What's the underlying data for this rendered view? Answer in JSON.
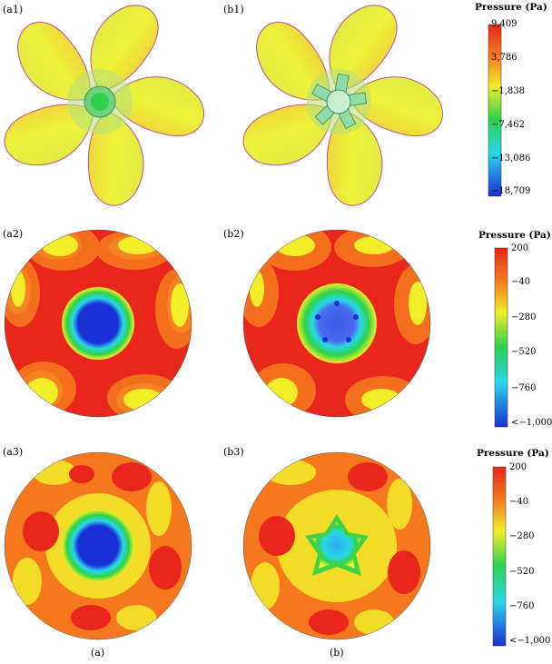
{
  "panels": {
    "a1": "(a1)",
    "b1": "(b1)",
    "a2": "(a2)",
    "b2": "(b2)",
    "a3": "(a3)",
    "b3": "(b3)"
  },
  "captions": {
    "a": "(a)",
    "b": "(b)"
  },
  "colorbars": [
    {
      "title": "Pressure (Pa)",
      "ticks": [
        "9,409",
        "3,786",
        "−1,838",
        "−7,462",
        "−13,086",
        "−18,709"
      ]
    },
    {
      "title": "Pressure (Pa)",
      "ticks": [
        "200",
        "−40",
        "−280",
        "−520",
        "−760",
        "<−1,000"
      ]
    },
    {
      "title": "Pressure (Pa)",
      "ticks": [
        "200",
        "−40",
        "−280",
        "−520",
        "−760",
        "<−1,000"
      ]
    }
  ],
  "colors": {
    "red": "#e8261b",
    "orange": "#f5781e",
    "yellow": "#f2ee2a",
    "green": "#2ed24a",
    "cyan": "#29d8e8",
    "blue": "#1b2fd6"
  }
}
